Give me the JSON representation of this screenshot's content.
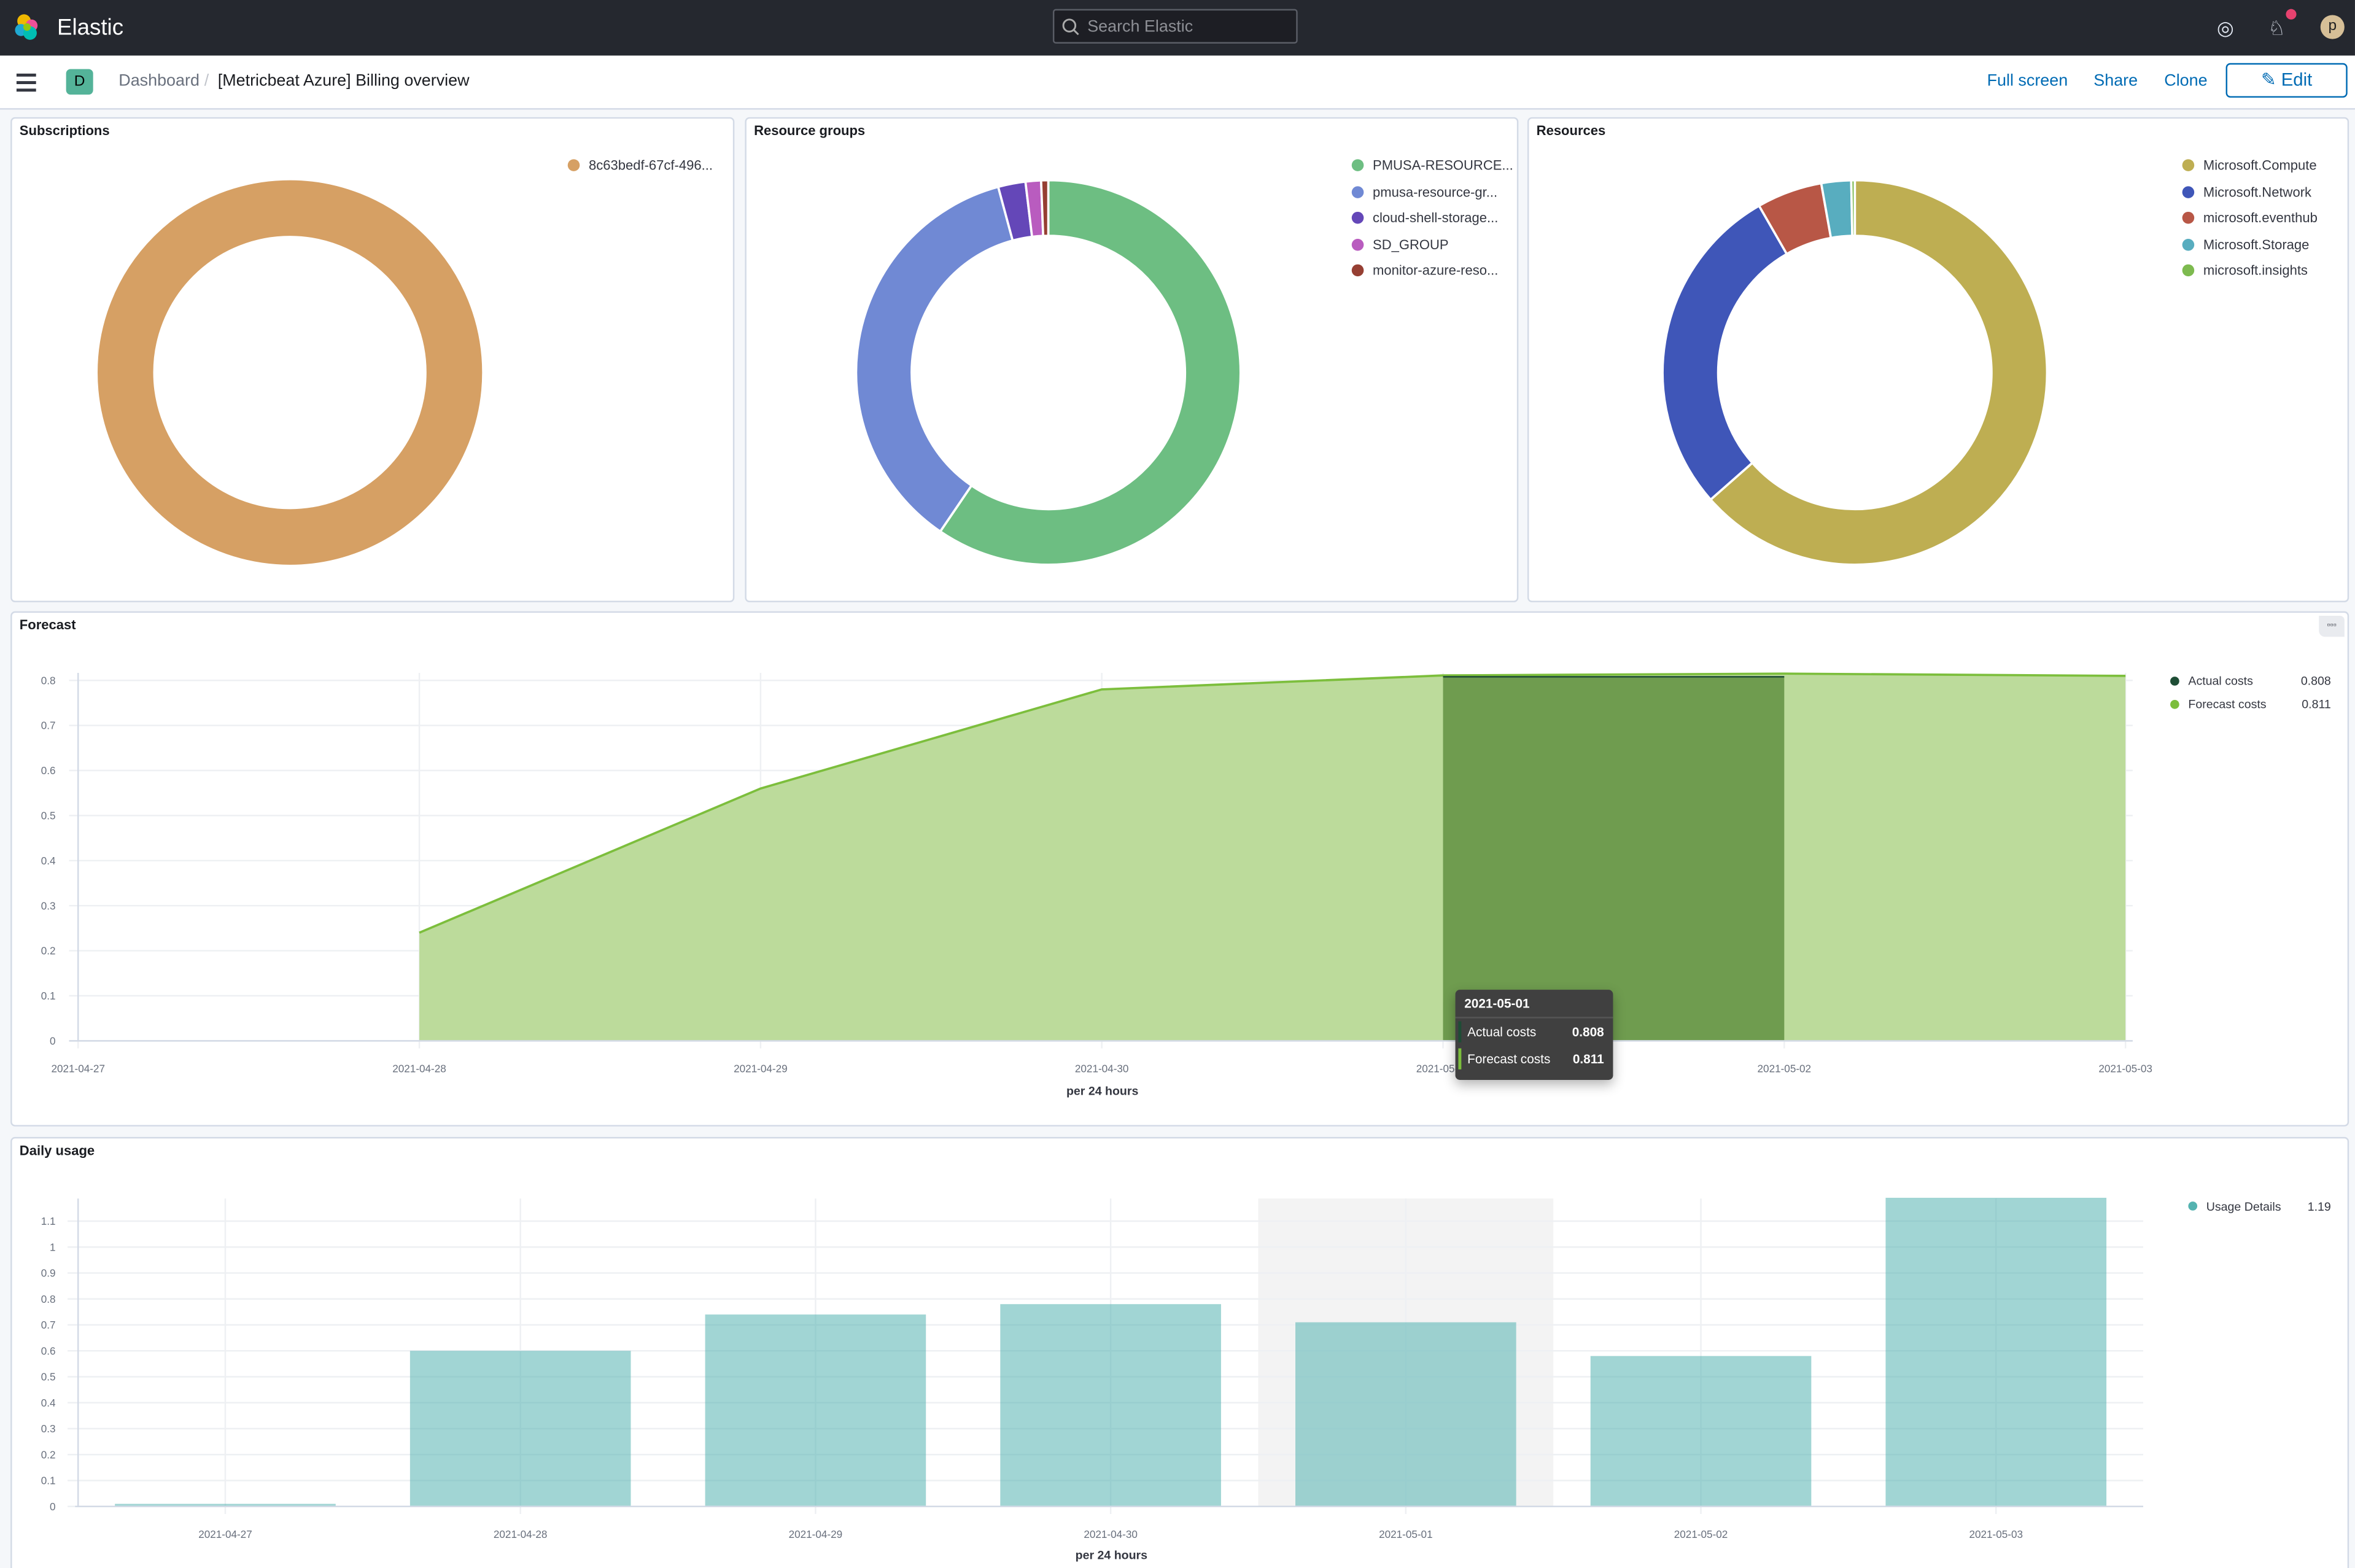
{
  "header": {
    "brand": "Elastic",
    "search_placeholder": "Search Elastic",
    "avatar_initial": "p"
  },
  "subheader": {
    "space_badge": "D",
    "breadcrumbs": [
      "Dashboard",
      "[Metricbeat Azure] Billing overview"
    ],
    "actions": {
      "full_screen": "Full screen",
      "share": "Share",
      "clone": "Clone",
      "edit": "Edit"
    }
  },
  "panels": {
    "subscriptions": {
      "title": "Subscriptions",
      "slices": [
        {
          "label": "8c63bedf-67cf-496...",
          "value": 100,
          "color": "#d6a064"
        }
      ]
    },
    "resource_groups": {
      "title": "Resource groups",
      "slices": [
        {
          "label": "PMUSA-RESOURCE...",
          "value": 59.5,
          "color": "#6dbe82"
        },
        {
          "label": "pmusa-resource-gr...",
          "value": 36.3,
          "color": "#7089d4"
        },
        {
          "label": "cloud-shell-storage...",
          "value": 2.3,
          "color": "#6447b8"
        },
        {
          "label": "SD_GROUP",
          "value": 1.3,
          "color": "#b95cbf"
        },
        {
          "label": "monitor-azure-reso...",
          "value": 0.6,
          "color": "#963f33"
        }
      ]
    },
    "resources": {
      "title": "Resources",
      "slices": [
        {
          "label": "Microsoft.Compute",
          "value": 63.5,
          "color": "#beae52"
        },
        {
          "label": "Microsoft.Network",
          "value": 28.2,
          "color": "#3f56b8"
        },
        {
          "label": "microsoft.eventhub",
          "value": 5.5,
          "color": "#b85746"
        },
        {
          "label": "Microsoft.Storage",
          "value": 2.5,
          "color": "#58adbf"
        },
        {
          "label": "microsoft.insights",
          "value": 0.3,
          "color": "#7dba4f"
        }
      ]
    }
  },
  "chart_data": [
    {
      "type": "area",
      "title": "Forecast",
      "xlabel": "per 24 hours",
      "ylim": [
        0,
        0.8
      ],
      "categories": [
        "2021-04-27",
        "2021-04-28",
        "2021-04-29",
        "2021-04-30",
        "2021-05-01",
        "2021-05-02",
        "2021-05-03"
      ],
      "yticks": [
        "0",
        "0.1",
        "0.2",
        "0.3",
        "0.4",
        "0.5",
        "0.6",
        "0.7",
        "0.8"
      ],
      "series": [
        {
          "name": "Actual costs",
          "color": "#1e4d35",
          "values": [
            null,
            null,
            null,
            null,
            0.808,
            0.808,
            null
          ]
        },
        {
          "name": "Forecast costs",
          "color": "#7cbe3c",
          "values": [
            null,
            0.24,
            0.56,
            0.78,
            0.811,
            0.815,
            0.81
          ]
        }
      ],
      "legend": {
        "position": "right",
        "items": [
          {
            "name": "Actual costs",
            "value": "0.808"
          },
          {
            "name": "Forecast costs",
            "value": "0.811"
          }
        ]
      },
      "tooltip": {
        "date": "2021-05-01",
        "rows": [
          {
            "name": "Actual costs",
            "value": "0.808"
          },
          {
            "name": "Forecast costs",
            "value": "0.811"
          }
        ]
      },
      "grid": true
    },
    {
      "type": "bar",
      "title": "Daily usage",
      "xlabel": "per 24 hours",
      "ylim": [
        0,
        1.19
      ],
      "categories": [
        "2021-04-27",
        "2021-04-28",
        "2021-04-29",
        "2021-04-30",
        "2021-05-01",
        "2021-05-02",
        "2021-05-03"
      ],
      "yticks": [
        "0",
        "0.1",
        "0.2",
        "0.3",
        "0.4",
        "0.5",
        "0.6",
        "0.7",
        "0.8",
        "0.9",
        "1",
        "1.1"
      ],
      "series": [
        {
          "name": "Usage Details",
          "color": "#54b3b0",
          "values": [
            0.01,
            0.6,
            0.74,
            0.78,
            0.71,
            0.58,
            1.19
          ]
        }
      ],
      "legend": {
        "position": "right",
        "items": [
          {
            "name": "Usage Details",
            "value": "1.19"
          }
        ]
      },
      "highlighted": "2021-05-01",
      "grid": true
    }
  ]
}
